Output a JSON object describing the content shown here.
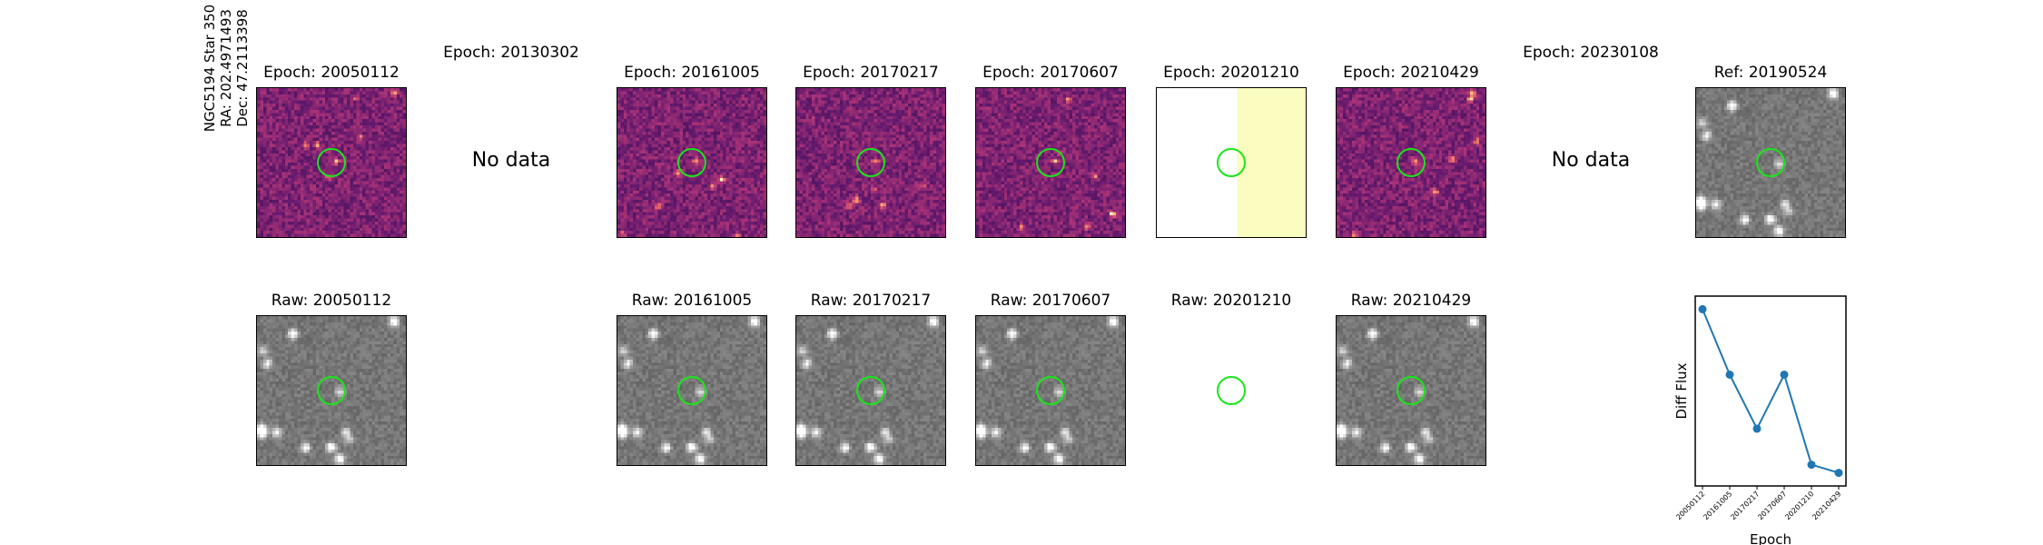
{
  "row_label": {
    "line1": "NGC5194 Star 350",
    "line2": "RA: 202.4971493",
    "line3": "Dec: 47.2113398"
  },
  "top_row": [
    {
      "title": "Epoch: 20050112",
      "kind": "diff",
      "seed": 11
    },
    {
      "title": "Epoch: 20130302",
      "kind": "nodata",
      "nodata": "No data"
    },
    {
      "title": "Epoch: 20161005",
      "kind": "diff",
      "seed": 23
    },
    {
      "title": "Epoch: 20170217",
      "kind": "diff",
      "seed": 37
    },
    {
      "title": "Epoch: 20170607",
      "kind": "diff",
      "seed": 41
    },
    {
      "title": "Epoch: 20201210",
      "kind": "half",
      "seed": 0
    },
    {
      "title": "Epoch: 20210429",
      "kind": "diff",
      "seed": 53
    },
    {
      "title": "Epoch: 20230108",
      "kind": "nodata",
      "nodata": "No data"
    },
    {
      "title": "Ref: 20190524",
      "kind": "raw",
      "seed": 7
    }
  ],
  "bottom_row": [
    {
      "title": "Raw: 20050112",
      "kind": "raw",
      "seed": 7
    },
    {
      "title": "",
      "kind": "empty"
    },
    {
      "title": "Raw: 20161005",
      "kind": "raw",
      "seed": 7
    },
    {
      "title": "Raw: 20170217",
      "kind": "raw",
      "seed": 7
    },
    {
      "title": "Raw: 20170607",
      "kind": "raw",
      "seed": 7
    },
    {
      "title": "Raw: 20201210",
      "kind": "blank"
    },
    {
      "title": "Raw: 20210429",
      "kind": "raw",
      "seed": 7
    },
    {
      "title": "",
      "kind": "empty"
    }
  ],
  "colors": {
    "ring": "#19e619",
    "line": "#1f77b4",
    "half_fill": "#fafcc0"
  },
  "chart_data": {
    "type": "line",
    "xlabel": "Epoch",
    "ylabel": "Diff Flux",
    "categories": [
      "20050112",
      "20161005",
      "20170217",
      "20170607",
      "20201210",
      "20210429"
    ],
    "values": [
      1.0,
      0.6,
      0.27,
      0.6,
      0.05,
      0.0
    ],
    "ylim": [
      -0.08,
      1.08
    ],
    "grid": false,
    "y_ticks_shown": false
  }
}
